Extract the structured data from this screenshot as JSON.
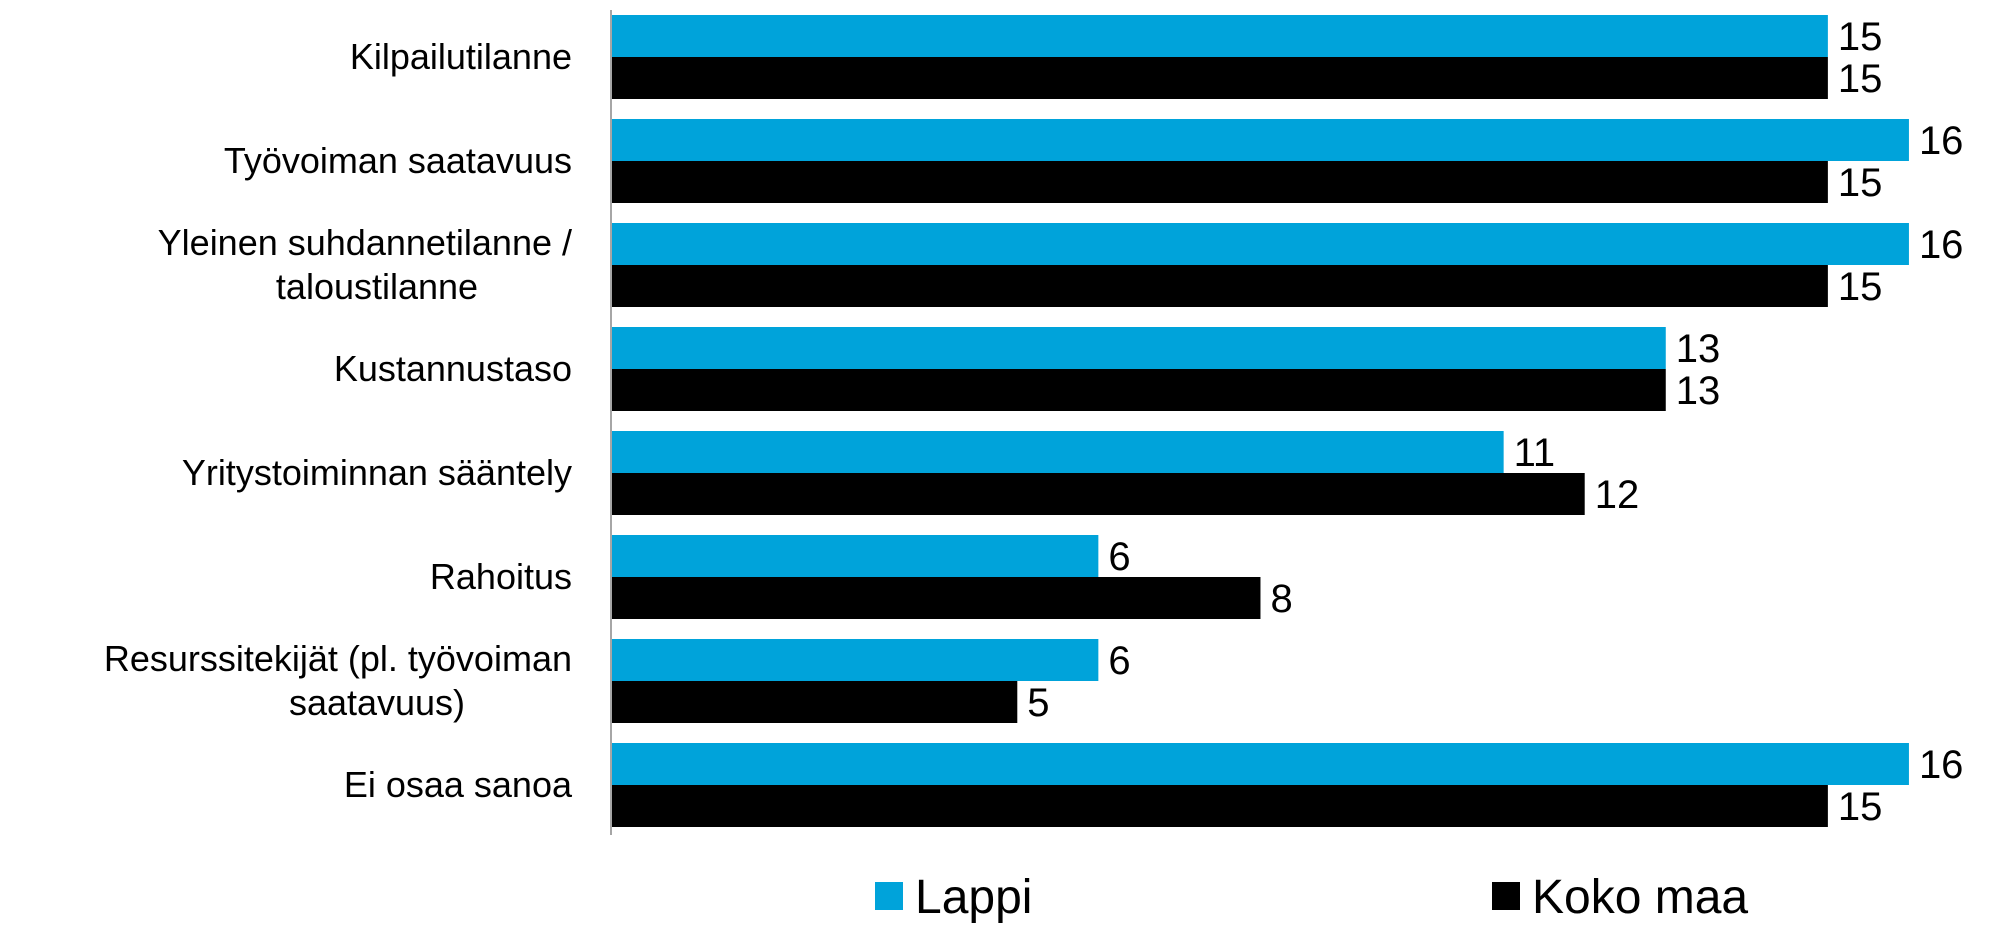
{
  "chart_data": {
    "type": "bar",
    "orientation": "horizontal",
    "categories": [
      [
        "Kilpailutilanne"
      ],
      [
        "Työvoiman saatavuus"
      ],
      [
        "Yleinen suhdannetilanne /",
        "taloustilanne"
      ],
      [
        "Kustannustaso"
      ],
      [
        "Yritystoiminnan sääntely"
      ],
      [
        "Rahoitus"
      ],
      [
        "Resurssitekijät (pl. työvoiman",
        "saatavuus)"
      ],
      [
        "Ei osaa sanoa"
      ]
    ],
    "series": [
      {
        "name": "Lappi",
        "color": "#00A3DA",
        "values": [
          15,
          16,
          16,
          13,
          11,
          6,
          6,
          16
        ],
        "labels": [
          "15",
          "16",
          "16",
          "13",
          "11",
          "6",
          "6",
          "16"
        ]
      },
      {
        "name": "Koko maa",
        "color": "#000000",
        "values": [
          15,
          15,
          15,
          13,
          12,
          8,
          5,
          15
        ],
        "labels": [
          "15",
          "15",
          "15",
          "13",
          "12",
          "8",
          "5",
          "15"
        ]
      }
    ],
    "xlim": [
      0,
      17
    ],
    "grid": false,
    "legend_position": "bottom"
  }
}
